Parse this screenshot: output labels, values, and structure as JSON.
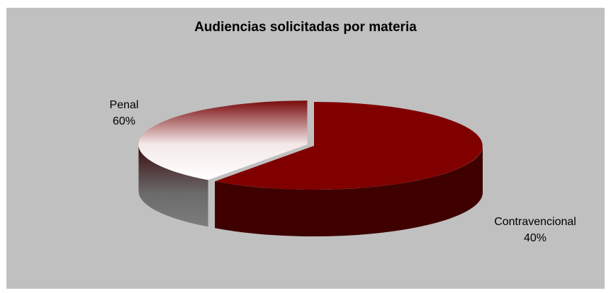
{
  "chart_data": {
    "type": "pie",
    "style": "3d-exploded",
    "title": "Audiencias solicitadas por materia",
    "categories": [
      "Penal",
      "Contravencional"
    ],
    "values": [
      60,
      40
    ],
    "value_labels": [
      "60%",
      "40%"
    ],
    "colors": [
      "#800000",
      "#ffffff"
    ],
    "legend": "none",
    "background": "#c0c0c0"
  }
}
